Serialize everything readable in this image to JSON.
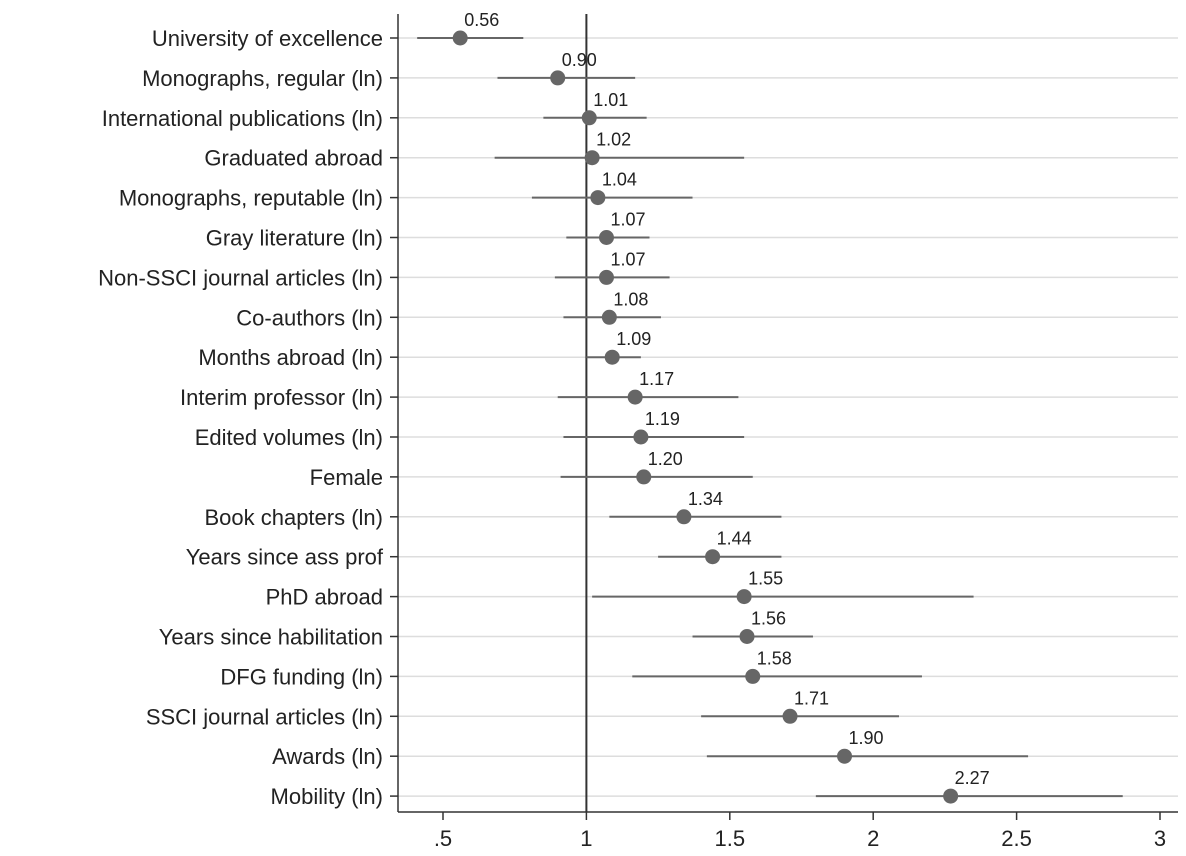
{
  "chart_data": {
    "type": "scatter",
    "subtype": "coefficient-plot-with-confidence-intervals",
    "title": "",
    "xlabel": "",
    "ylabel": "",
    "xlim": [
      0.4,
      3.05
    ],
    "x_ticks": [
      0.5,
      1,
      1.5,
      2,
      2.5,
      3
    ],
    "x_tick_labels": [
      ".5",
      "1",
      "1.5",
      "2",
      "2.5",
      "3"
    ],
    "reference_line": 1,
    "grid": "horizontal",
    "legend": "none",
    "colors": {
      "marker": "#666666",
      "ci_line": "#666666",
      "reference_line": "#333333",
      "grid": "#dddddd",
      "axis": "#333333",
      "text": "#222222"
    },
    "categories": [
      "University of excellence",
      "Monographs, regular (ln)",
      "International publications (ln)",
      "Graduated abroad",
      "Monographs, reputable (ln)",
      "Gray literature (ln)",
      "Non-SSCI journal articles (ln)",
      "Co-authors (ln)",
      "Months abroad (ln)",
      "Interim professor (ln)",
      "Edited volumes (ln)",
      "Female",
      "Book chapters (ln)",
      "Years since ass prof",
      "PhD abroad",
      "Years since habilitation",
      "DFG funding (ln)",
      "SSCI journal articles (ln)",
      "Awards (ln)",
      "Mobility (ln)"
    ],
    "series": [
      {
        "values": [
          0.56,
          0.9,
          1.01,
          1.02,
          1.04,
          1.07,
          1.07,
          1.08,
          1.09,
          1.17,
          1.19,
          1.2,
          1.34,
          1.44,
          1.55,
          1.56,
          1.58,
          1.71,
          1.9,
          2.27
        ],
        "value_labels": [
          "0.56",
          "0.90",
          "1.01",
          "1.02",
          "1.04",
          "1.07",
          "1.07",
          "1.08",
          "1.09",
          "1.17",
          "1.19",
          "1.20",
          "1.34",
          "1.44",
          "1.55",
          "1.56",
          "1.58",
          "1.71",
          "1.90",
          "2.27"
        ],
        "ci_low": [
          0.41,
          0.69,
          0.85,
          0.68,
          0.81,
          0.93,
          0.89,
          0.92,
          1.0,
          0.9,
          0.92,
          0.91,
          1.08,
          1.25,
          1.02,
          1.37,
          1.16,
          1.4,
          1.42,
          1.8
        ],
        "ci_high": [
          0.78,
          1.17,
          1.21,
          1.55,
          1.37,
          1.22,
          1.29,
          1.26,
          1.19,
          1.53,
          1.55,
          1.58,
          1.68,
          1.68,
          2.35,
          1.79,
          2.17,
          2.09,
          2.54,
          2.87
        ]
      }
    ]
  }
}
